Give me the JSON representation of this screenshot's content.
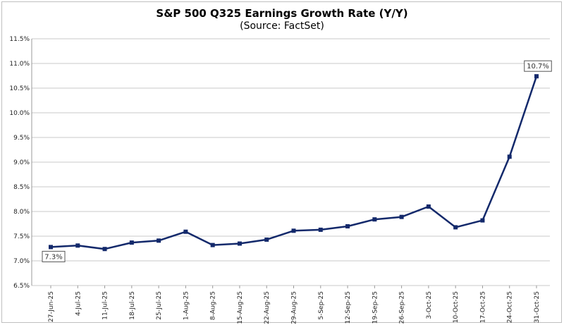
{
  "chart_data": {
    "type": "line",
    "title": "S&P 500 Q325 Earnings Growth Rate (Y/Y)",
    "subtitle": "(Source: FactSet)",
    "xlabel": "",
    "ylabel": "",
    "ylim": [
      6.5,
      11.5
    ],
    "yticks": [
      "6.5%",
      "7.0%",
      "7.5%",
      "8.0%",
      "8.5%",
      "9.0%",
      "9.5%",
      "10.0%",
      "10.5%",
      "11.0%",
      "11.5%"
    ],
    "grid": true,
    "categories": [
      "27-Jun-25",
      "4-Jul-25",
      "11-Jul-25",
      "18-Jul-25",
      "25-Jul-25",
      "1-Aug-25",
      "8-Aug-25",
      "15-Aug-25",
      "22-Aug-25",
      "29-Aug-25",
      "5-Sep-25",
      "12-Sep-25",
      "19-Sep-25",
      "26-Sep-25",
      "3-Oct-25",
      "10-Oct-25",
      "17-Oct-25",
      "24-Oct-25",
      "31-Oct-25"
    ],
    "values": [
      7.28,
      7.31,
      7.24,
      7.37,
      7.41,
      7.59,
      7.32,
      7.35,
      7.43,
      7.61,
      7.63,
      7.7,
      7.84,
      7.89,
      8.1,
      7.68,
      7.82,
      9.11,
      10.74
    ],
    "data_labels": [
      {
        "index": 0,
        "text": "7.3%"
      },
      {
        "index": 18,
        "text": "10.7%"
      }
    ],
    "line_color": "#13296b"
  }
}
